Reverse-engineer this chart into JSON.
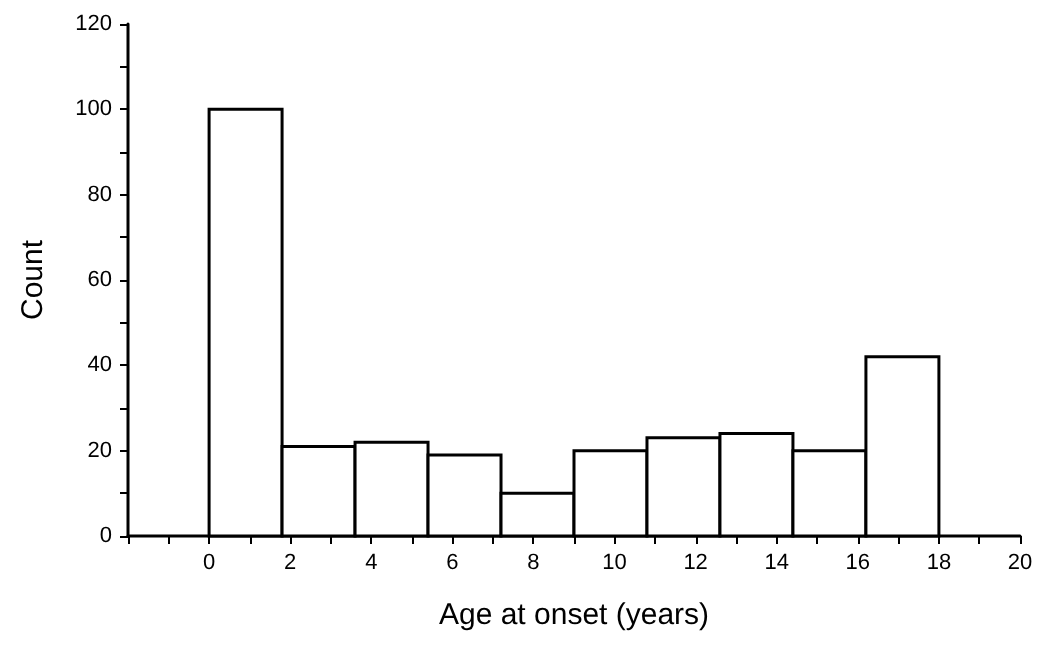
{
  "chart_data": {
    "type": "histogram",
    "xlabel": "Age at onset (years)",
    "ylabel": "Count",
    "bins": [
      0,
      1.8,
      3.6,
      5.4,
      7.2,
      9,
      10.8,
      12.6,
      14.4,
      16.2,
      18
    ],
    "values": [
      100,
      21,
      22,
      19,
      10,
      20,
      23,
      24,
      20,
      42
    ],
    "color": "#ffffff",
    "xlim": [
      -2,
      20
    ],
    "xticks": [
      {
        "value": -2,
        "label": null
      },
      {
        "value": -1,
        "label": null
      },
      0,
      {
        "value": 1,
        "label": null
      },
      2,
      {
        "value": 3,
        "label": null
      },
      4,
      {
        "value": 5,
        "label": null
      },
      6,
      {
        "value": 7,
        "label": null
      },
      8,
      {
        "value": 9,
        "label": null
      },
      10,
      {
        "value": 11,
        "label": null
      },
      12,
      {
        "value": 13,
        "label": null
      },
      14,
      {
        "value": 15,
        "label": null
      },
      16,
      {
        "value": 17,
        "label": null
      },
      18,
      {
        "value": 19,
        "label": null
      },
      20
    ],
    "ylim": [
      0,
      120
    ],
    "yticks": [
      0,
      {
        "value": 10,
        "label": null
      },
      20,
      {
        "value": 30,
        "label": null
      },
      40,
      {
        "value": 50,
        "label": null
      },
      60,
      {
        "value": 70,
        "label": null
      },
      80,
      {
        "value": 90,
        "label": null
      },
      100,
      {
        "value": 110,
        "label": null
      },
      120
    ],
    "grid": false
  }
}
